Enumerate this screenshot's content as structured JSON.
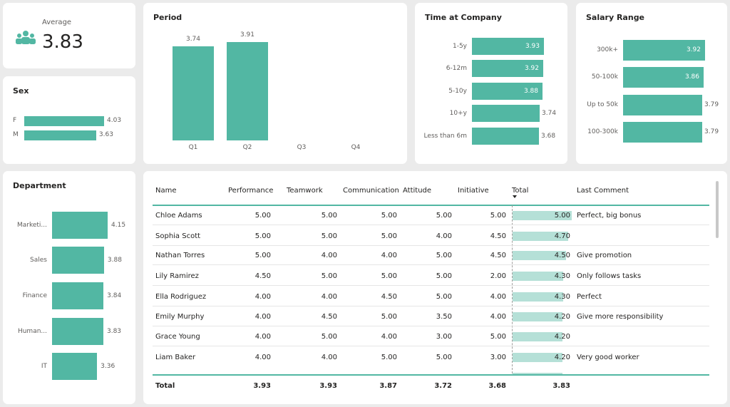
{
  "kpi": {
    "label": "Average",
    "value": "3.83",
    "icon": "people-icon"
  },
  "sex": {
    "title": "Sex",
    "items": [
      {
        "label": "F",
        "value": "4.03",
        "v": 4.03
      },
      {
        "label": "M",
        "value": "3.63",
        "v": 3.63
      }
    ]
  },
  "period": {
    "title": "Period",
    "items": [
      {
        "label": "Q1",
        "value": "3.74",
        "v": 3.74
      },
      {
        "label": "Q2",
        "value": "3.91",
        "v": 3.91
      },
      {
        "label": "Q3",
        "value": "",
        "v": 0
      },
      {
        "label": "Q4",
        "value": "",
        "v": 0
      }
    ]
  },
  "time": {
    "title": "Time at Company",
    "items": [
      {
        "label": "1-5y",
        "value": "3.93",
        "v": 3.93
      },
      {
        "label": "6-12m",
        "value": "3.92",
        "v": 3.92
      },
      {
        "label": "5-10y",
        "value": "3.88",
        "v": 3.88
      },
      {
        "label": "10+y",
        "value": "3.74",
        "v": 3.74
      },
      {
        "label": "Less than 6m",
        "value": "3.68",
        "v": 3.68
      }
    ]
  },
  "salary": {
    "title": "Salary Range",
    "items": [
      {
        "label": "300k+",
        "value": "3.92",
        "v": 3.92
      },
      {
        "label": "50-100k",
        "value": "3.86",
        "v": 3.86
      },
      {
        "label": "Up to 50k",
        "value": "3.79",
        "v": 3.79
      },
      {
        "label": "100-300k",
        "value": "3.79",
        "v": 3.79
      }
    ]
  },
  "department": {
    "title": "Department",
    "items": [
      {
        "label": "Marketi...",
        "value": "4.15",
        "v": 4.15
      },
      {
        "label": "Sales",
        "value": "3.88",
        "v": 3.88
      },
      {
        "label": "Finance",
        "value": "3.84",
        "v": 3.84
      },
      {
        "label": "Human...",
        "value": "3.83",
        "v": 3.83
      },
      {
        "label": "IT",
        "value": "3.36",
        "v": 3.36
      }
    ]
  },
  "table": {
    "columns": [
      "Name",
      "Performance",
      "Teamwork",
      "Communication",
      "Attitude",
      "Initiative",
      "Total",
      "Last Comment"
    ],
    "rows": [
      [
        "Chloe Adams",
        "5.00",
        "5.00",
        "5.00",
        "5.00",
        "5.00",
        "5.00",
        "Perfect, big bonus"
      ],
      [
        "Sophia Scott",
        "5.00",
        "5.00",
        "5.00",
        "4.00",
        "4.50",
        "4.70",
        ""
      ],
      [
        "Nathan Torres",
        "5.00",
        "4.00",
        "4.00",
        "5.00",
        "4.50",
        "4.50",
        "Give promotion"
      ],
      [
        "Lily Ramirez",
        "4.50",
        "5.00",
        "5.00",
        "5.00",
        "2.00",
        "4.30",
        "Only follows tasks"
      ],
      [
        "Ella Rodriguez",
        "4.00",
        "4.00",
        "4.50",
        "5.00",
        "4.00",
        "4.30",
        "Perfect"
      ],
      [
        "Emily Murphy",
        "4.00",
        "4.50",
        "5.00",
        "3.50",
        "4.00",
        "4.20",
        "Give more responsibility"
      ],
      [
        "Grace Young",
        "4.00",
        "5.00",
        "4.00",
        "3.00",
        "5.00",
        "4.20",
        ""
      ],
      [
        "Liam Baker",
        "4.00",
        "4.00",
        "5.00",
        "5.00",
        "3.00",
        "4.20",
        "Very good worker"
      ]
    ],
    "totals": [
      "Total",
      "3.93",
      "3.93",
      "3.87",
      "3.72",
      "3.68",
      "3.83",
      ""
    ]
  },
  "colors": {
    "accent": "#52b7a3",
    "total_bar": "#b5e0d7",
    "background": "#ebebeb"
  }
}
